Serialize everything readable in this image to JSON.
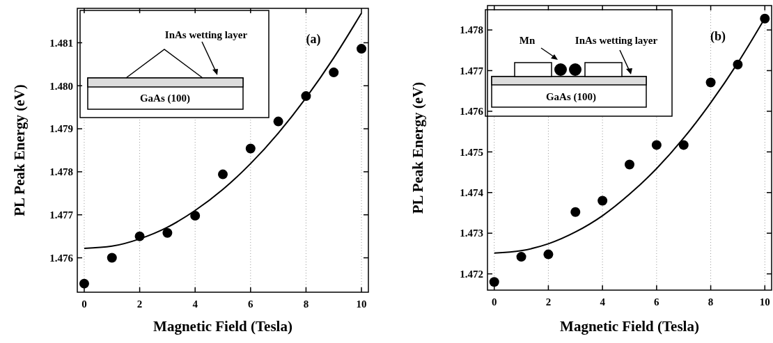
{
  "chart_data": [
    {
      "type": "scatter",
      "xlabel": "Magnetic Field (Tesla)",
      "ylabel": "PL Peak Energy (eV)",
      "annotations": [
        "(a)",
        "InAs wetting layer",
        "GaAs (100)"
      ],
      "x": [
        0,
        1,
        2,
        3,
        4,
        5,
        6,
        7,
        8,
        9,
        10
      ],
      "series": [
        {
          "color": "#000000",
          "marker": "circle",
          "values": [
            1.4754,
            1.476,
            1.4765,
            1.47658,
            1.47698,
            1.47794,
            1.47854,
            1.47917,
            1.47976,
            1.48031,
            1.48086
          ]
        },
        {
          "type": "line",
          "color": "#000000",
          "line_style": "solid",
          "values": [
            1.47622,
            1.47627,
            1.47644,
            1.47671,
            1.4771,
            1.47759,
            1.47819,
            1.4789,
            1.47972,
            1.48065,
            1.48169
          ]
        }
      ],
      "xlim": [
        -0.25,
        10.25
      ],
      "xticks": [
        0,
        2,
        4,
        6,
        8,
        10
      ],
      "ylim": [
        1.4752,
        1.4818
      ],
      "yticks": [
        1.476,
        1.477,
        1.478,
        1.479,
        {
          "value": 1.48,
          "label": "1.480"
        },
        1.481
      ],
      "grid": "x"
    },
    {
      "type": "scatter",
      "xlabel": "Magnetic Field (Tesla)",
      "ylabel": "PL Peak Energy (eV)",
      "annotations": [
        "(b)",
        "Mn",
        "InAs wetting layer",
        "GaAs (100)"
      ],
      "x": [
        0,
        1,
        2,
        3,
        4,
        5,
        6,
        7,
        8,
        9,
        10
      ],
      "series": [
        {
          "color": "#000000",
          "marker": "circle",
          "values": [
            1.4718,
            1.47242,
            1.47248,
            1.47352,
            1.4738,
            1.47469,
            1.47517,
            1.47517,
            1.47671,
            1.47715,
            1.47828
          ]
        },
        {
          "type": "line",
          "color": "#000000",
          "line_style": "solid",
          "values": [
            1.47251,
            1.47257,
            1.47274,
            1.47303,
            1.47343,
            1.47396,
            1.47459,
            1.47534,
            1.47621,
            1.47719,
            1.47829
          ]
        }
      ],
      "xlim": [
        -0.25,
        10.25
      ],
      "xticks": [
        0,
        2,
        4,
        6,
        8,
        10
      ],
      "ylim": [
        1.4716,
        1.4786
      ],
      "yticks": [
        1.472,
        1.473,
        1.474,
        1.475,
        1.476,
        1.477,
        1.478
      ],
      "grid": "x"
    }
  ]
}
